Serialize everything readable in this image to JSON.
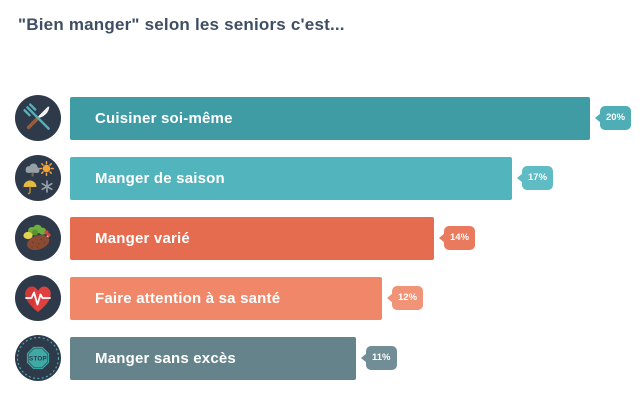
{
  "page": {
    "title": "\"Bien manger\" selon les seniors c'est...",
    "title_color": "#3f4e63",
    "background": "#ffffff"
  },
  "chart_data": {
    "type": "bar",
    "orientation": "horizontal",
    "title": "\"Bien manger\" selon les seniors c'est...",
    "categories": [
      "Cuisiner soi-même",
      "Manger de saison",
      "Manger varié",
      "Faire attention à sa santé",
      "Manger sans excès"
    ],
    "values": [
      20,
      17,
      14,
      12,
      11
    ],
    "unit": "%",
    "xlim": [
      0,
      20
    ],
    "grid": false,
    "legend": false,
    "label_text_color": "#ffffff",
    "icon_circle_color": "#2e3a49",
    "bars": [
      {
        "label": "Cuisiner soi-même",
        "value": 20,
        "value_label": "20%",
        "color": "#3f9ca4",
        "badge_color": "#4fadb5",
        "icon": "crossed-utensils-icon"
      },
      {
        "label": "Manger de saison",
        "value": 17,
        "value_label": "17%",
        "color": "#52b4bd",
        "badge_color": "#5fbcc4",
        "icon": "seasons-weather-icon"
      },
      {
        "label": "Manger varié",
        "value": 14,
        "value_label": "14%",
        "color": "#e66c4f",
        "badge_color": "#e97a5d",
        "icon": "varied-meal-icon"
      },
      {
        "label": "Faire attention à sa santé",
        "value": 12,
        "value_label": "12%",
        "color": "#f08768",
        "badge_color": "#f19377",
        "icon": "heart-pulse-icon"
      },
      {
        "label": "Manger sans excès",
        "value": 11,
        "value_label": "11%",
        "color": "#64838b",
        "badge_color": "#718d95",
        "icon": "stop-sign-icon"
      }
    ]
  }
}
